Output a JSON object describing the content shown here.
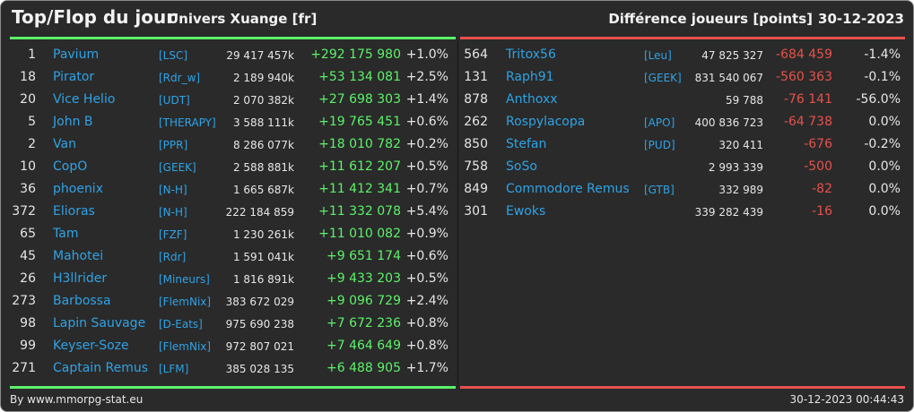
{
  "header": {
    "title": "Top/Flop du jour",
    "universe": "Univers Xuange [fr]",
    "diff_label": "Différence joueurs [points]",
    "date": "30-12-2023"
  },
  "colors": {
    "background": "#2a2a2a",
    "name": "#2fa3e6",
    "positive": "#5cf26a",
    "negative": "#e8514c",
    "text": "#e6e6e6"
  },
  "top": [
    {
      "rank": "1",
      "name": "Pavium",
      "alliance": "[LSC]",
      "points": "29 417 457k",
      "diff": "+292 175 980",
      "pct": "+1.0%"
    },
    {
      "rank": "18",
      "name": "Pirator",
      "alliance": "[Rdr_w]",
      "points": "2 189 940k",
      "diff": "+53 134 081",
      "pct": "+2.5%"
    },
    {
      "rank": "20",
      "name": "Vice Helio",
      "alliance": "[UDT]",
      "points": "2 070 382k",
      "diff": "+27 698 303",
      "pct": "+1.4%"
    },
    {
      "rank": "5",
      "name": "John B",
      "alliance": "[THERAPY]",
      "points": "3 588 111k",
      "diff": "+19 765 451",
      "pct": "+0.6%"
    },
    {
      "rank": "2",
      "name": "Van",
      "alliance": "[PPR]",
      "points": "8 286 077k",
      "diff": "+18 010 782",
      "pct": "+0.2%"
    },
    {
      "rank": "10",
      "name": "CopO",
      "alliance": "[GEEK]",
      "points": "2 588 881k",
      "diff": "+11 612 207",
      "pct": "+0.5%"
    },
    {
      "rank": "36",
      "name": "phoenix",
      "alliance": "[N-H]",
      "points": "1 665 687k",
      "diff": "+11 412 341",
      "pct": "+0.7%"
    },
    {
      "rank": "372",
      "name": "Elioras",
      "alliance": "[N-H]",
      "points": "222 184 859",
      "diff": "+11 332 078",
      "pct": "+5.4%"
    },
    {
      "rank": "65",
      "name": "Tam",
      "alliance": "[FZF]",
      "points": "1 230 261k",
      "diff": "+11 010 082",
      "pct": "+0.9%"
    },
    {
      "rank": "45",
      "name": "Mahotei",
      "alliance": "[Rdr]",
      "points": "1 591 041k",
      "diff": "+9 651 174",
      "pct": "+0.6%"
    },
    {
      "rank": "26",
      "name": "H3llrider",
      "alliance": "[Mineurs]",
      "points": "1 816 891k",
      "diff": "+9 433 203",
      "pct": "+0.5%"
    },
    {
      "rank": "273",
      "name": "Barbossa",
      "alliance": "[FlemNix]",
      "points": "383 672 029",
      "diff": "+9 096 729",
      "pct": "+2.4%"
    },
    {
      "rank": "98",
      "name": "Lapin Sauvage",
      "alliance": "[D-Eats]",
      "points": "975 690 238",
      "diff": "+7 672 236",
      "pct": "+0.8%"
    },
    {
      "rank": "99",
      "name": "Keyser-Soze",
      "alliance": "[FlemNix]",
      "points": "972 807 021",
      "diff": "+7 464 649",
      "pct": "+0.8%"
    },
    {
      "rank": "271",
      "name": "Captain Remus",
      "alliance": "[LFM]",
      "points": "385 028 135",
      "diff": "+6 488 905",
      "pct": "+1.7%"
    }
  ],
  "flop": [
    {
      "rank": "564",
      "name": "Tritox56",
      "alliance": "[Leu]",
      "points": "47 825 327",
      "diff": "-684 459",
      "pct": "-1.4%"
    },
    {
      "rank": "131",
      "name": "Raph91",
      "alliance": "[GEEK]",
      "points": "831 540 067",
      "diff": "-560 363",
      "pct": "-0.1%"
    },
    {
      "rank": "878",
      "name": "Anthoxx",
      "alliance": "",
      "points": "59 788",
      "diff": "-76 141",
      "pct": "-56.0%"
    },
    {
      "rank": "262",
      "name": "Rospylacopa",
      "alliance": "[APO]",
      "points": "400 836 723",
      "diff": "-64 738",
      "pct": "0.0%"
    },
    {
      "rank": "850",
      "name": "Stefan",
      "alliance": "[PUD]",
      "points": "320 411",
      "diff": "-676",
      "pct": "-0.2%"
    },
    {
      "rank": "758",
      "name": "SoSo",
      "alliance": "",
      "points": "2 993 339",
      "diff": "-500",
      "pct": "0.0%"
    },
    {
      "rank": "849",
      "name": "Commodore Remus",
      "alliance": "[GTB]",
      "points": "332 989",
      "diff": "-82",
      "pct": "0.0%"
    },
    {
      "rank": "301",
      "name": "Ewoks",
      "alliance": "",
      "points": "339 282 439",
      "diff": "-16",
      "pct": "0.0%"
    }
  ],
  "footer": {
    "source": "By www.mmorpg-stat.eu",
    "timestamp": "30-12-2023 00:44:43"
  }
}
